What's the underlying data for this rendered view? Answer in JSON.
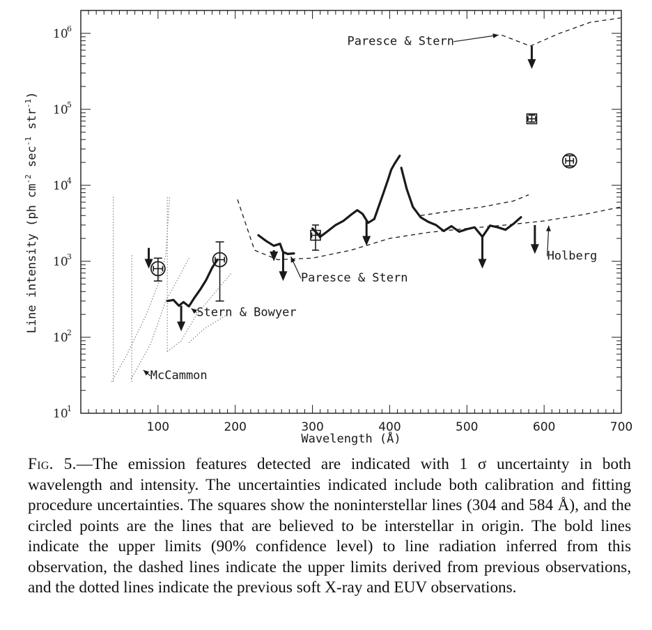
{
  "chart_data": {
    "type": "line",
    "xlabel": "Wavelength (Å)",
    "ylabel": "Line intensity (ph cm",
    "ylabel_exp1": "-2",
    "ylabel_mid": " sec",
    "ylabel_exp2": "-1",
    "ylabel_mid2": " str",
    "ylabel_exp3": "-1",
    "ylabel_end": ")",
    "y_scale": "log",
    "xlim": [
      0,
      700
    ],
    "ylim": [
      10,
      2000000
    ],
    "x_ticks": [
      100,
      200,
      300,
      400,
      500,
      600,
      700
    ],
    "y_ticks": [
      {
        "base": "10",
        "exp": "1",
        "value": 10
      },
      {
        "base": "10",
        "exp": "2",
        "value": 100
      },
      {
        "base": "10",
        "exp": "3",
        "value": 1000
      },
      {
        "base": "10",
        "exp": "4",
        "value": 10000
      },
      {
        "base": "10",
        "exp": "5",
        "value": 100000
      },
      {
        "base": "10",
        "exp": "6",
        "value": 1000000
      }
    ],
    "bold_limits": [
      {
        "x": [
          230,
          240,
          250,
          258,
          262,
          268,
          276
        ],
        "y": [
          2200,
          1850,
          1600,
          1700,
          1320,
          1250,
          1270
        ]
      },
      {
        "x": [
          300,
          310,
          320,
          330,
          340,
          350,
          358,
          365,
          372,
          380,
          385,
          392,
          398,
          402,
          406,
          410,
          413
        ],
        "y": [
          2700,
          2100,
          2500,
          3000,
          3400,
          4100,
          4700,
          4200,
          3200,
          3600,
          5000,
          8000,
          12000,
          16000,
          19000,
          22000,
          24500
        ]
      },
      {
        "x": [
          415,
          422,
          430,
          440,
          450,
          460,
          470,
          480,
          490,
          500,
          510,
          520,
          530,
          540,
          550,
          560,
          570
        ],
        "y": [
          17000,
          9000,
          5200,
          3800,
          3300,
          3000,
          2500,
          2900,
          2450,
          2650,
          2800,
          2100,
          2950,
          2800,
          2600,
          3100,
          3800
        ]
      },
      {
        "x": [
          112,
          120,
          127,
          133,
          140,
          147,
          155,
          162,
          170,
          177
        ],
        "y": [
          300,
          310,
          260,
          290,
          255,
          330,
          430,
          560,
          820,
          1050
        ]
      }
    ],
    "dashed_limits": [
      {
        "x": [
          203,
          225,
          255,
          300,
          350,
          400,
          450,
          500,
          550,
          600,
          650,
          700
        ],
        "y": [
          6500,
          1400,
          1050,
          1100,
          1400,
          2000,
          2400,
          2700,
          3000,
          3400,
          4100,
          5200
        ]
      },
      {
        "x": [
          440,
          480,
          520,
          560,
          580
        ],
        "y": [
          4000,
          4600,
          5200,
          6200,
          7500
        ]
      },
      {
        "x": [
          545,
          582,
          620,
          660,
          700
        ],
        "y": [
          950000,
          680000,
          1000000,
          1400000,
          1600000
        ]
      }
    ],
    "dotted_curves": [
      {
        "x": [
          40,
          60,
          85,
          100,
          110,
          115
        ],
        "y": [
          26,
          60,
          200,
          500,
          1200,
          7000
        ]
      },
      {
        "x": [
          65,
          90,
          110,
          130,
          140
        ],
        "y": [
          28,
          80,
          300,
          700,
          1100
        ]
      },
      {
        "x": [
          112,
          130,
          150,
          175,
          195
        ],
        "y": [
          65,
          90,
          200,
          400,
          700
        ]
      },
      {
        "x": [
          140,
          160,
          190
        ],
        "y": [
          85,
          130,
          200
        ]
      }
    ],
    "dotted_verticals": [
      {
        "x": 42,
        "y": [
          26,
          7500
        ]
      },
      {
        "x": 66,
        "y": [
          26,
          1200
        ]
      },
      {
        "x": 112,
        "y": [
          65,
          7000
        ]
      }
    ],
    "down_arrows": [
      {
        "x": 88,
        "y_from": 1500,
        "y_to": 800
      },
      {
        "x": 130,
        "y_from": 260,
        "y_to": 120
      },
      {
        "x": 250,
        "y_from": 1400,
        "y_to": 1000
      },
      {
        "x": 262,
        "y_from": 1300,
        "y_to": 550
      },
      {
        "x": 370,
        "y_from": 3400,
        "y_to": 1600
      },
      {
        "x": 520,
        "y_from": 2100,
        "y_to": 800
      },
      {
        "x": 588,
        "y_from": 3000,
        "y_to": 1250
      },
      {
        "x": 584,
        "y_from": 680000,
        "y_to": 340000
      }
    ],
    "square_points": [
      {
        "x": 304,
        "y": 2200,
        "xerr": 5,
        "ylo": 1400,
        "yhi": 3000
      },
      {
        "x": 584,
        "y": 75000,
        "xerr": 5,
        "ylo": 68000,
        "yhi": 84000
      }
    ],
    "circle_points": [
      {
        "x": 100,
        "y": 800,
        "xerr": 6,
        "ylo": 550,
        "yhi": 1100
      },
      {
        "x": 180,
        "y": 1050,
        "xerr": 6,
        "ylo": 300,
        "yhi": 1800
      },
      {
        "x": 633,
        "y": 21000,
        "xerr": 5,
        "ylo": 18000,
        "yhi": 24500
      }
    ],
    "annotations": [
      {
        "key": "paresce_top",
        "text": "Paresce & Stern",
        "x": 345,
        "y": 700000,
        "ax": 541,
        "ay": 950000
      },
      {
        "key": "holberg",
        "text": "Holberg",
        "x": 604,
        "y": 1050,
        "ax": 606,
        "ay": 2950
      },
      {
        "key": "paresce_mid",
        "text": "Paresce & Stern",
        "x": 285,
        "y": 540,
        "ax": 272,
        "ay": 1150
      },
      {
        "key": "stern_bowyer",
        "text": "Stern & Bowyer",
        "x": 150,
        "y": 190,
        "ax": 143,
        "ay": 240
      },
      {
        "key": "mccammon",
        "text": "McCammon",
        "x": 90,
        "y": 28,
        "ax": 81,
        "ay": 37
      }
    ],
    "legend": "none",
    "grid": false
  },
  "caption": {
    "label": "Fig. 5.",
    "text": "—The emission features detected are indicated with 1 σ uncertainty in both wavelength and intensity. The uncertainties indicated include both calibration and fitting procedure uncertainties. The squares show the noninterstellar lines (304 and 584 Å), and the circled points are the lines that are believed to be interstellar in origin. The bold lines indicate the upper limits (90% confidence level) to line radiation inferred from this observation, the dashed lines indicate the upper limits derived from previous observations, and the dotted lines indicate the previous soft X-ray and EUV observations."
  }
}
